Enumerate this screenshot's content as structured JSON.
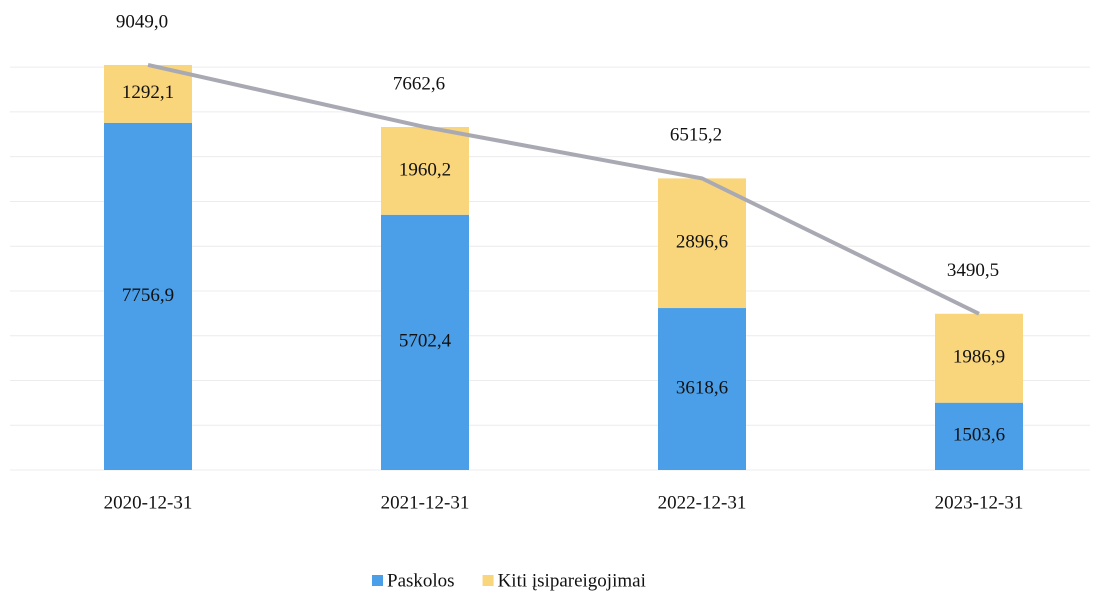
{
  "chart_data": {
    "type": "stacked_bar_line",
    "categories": [
      "2020-12-31",
      "2021-12-31",
      "2022-12-31",
      "2023-12-31"
    ],
    "series": [
      {
        "name": "Paskolos",
        "color": "#4a9fe8",
        "values": [
          7756.9,
          5702.4,
          3618.6,
          1503.6
        ],
        "value_labels": [
          "7756,9",
          "5702,4",
          "3618,6",
          "1503,6"
        ]
      },
      {
        "name": "Kiti įsipareigojimai",
        "color": "#f9d57c",
        "values": [
          1292.1,
          1960.2,
          2896.6,
          1986.9
        ],
        "value_labels": [
          "1292,1",
          "1960,2",
          "2896,6",
          "1986,9"
        ]
      }
    ],
    "totals": {
      "color": "#a9a9b3",
      "values": [
        9049.0,
        7662.6,
        6515.2,
        3490.5
      ],
      "value_labels": [
        "9049,0",
        "7662,6",
        "6515,2",
        "3490,5"
      ]
    },
    "ylim": [
      0,
      10000
    ],
    "yticks": [
      0,
      1000,
      2000,
      3000,
      4000,
      5000,
      6000,
      7000,
      8000,
      9000
    ],
    "grid": true,
    "legend": "bottom"
  }
}
